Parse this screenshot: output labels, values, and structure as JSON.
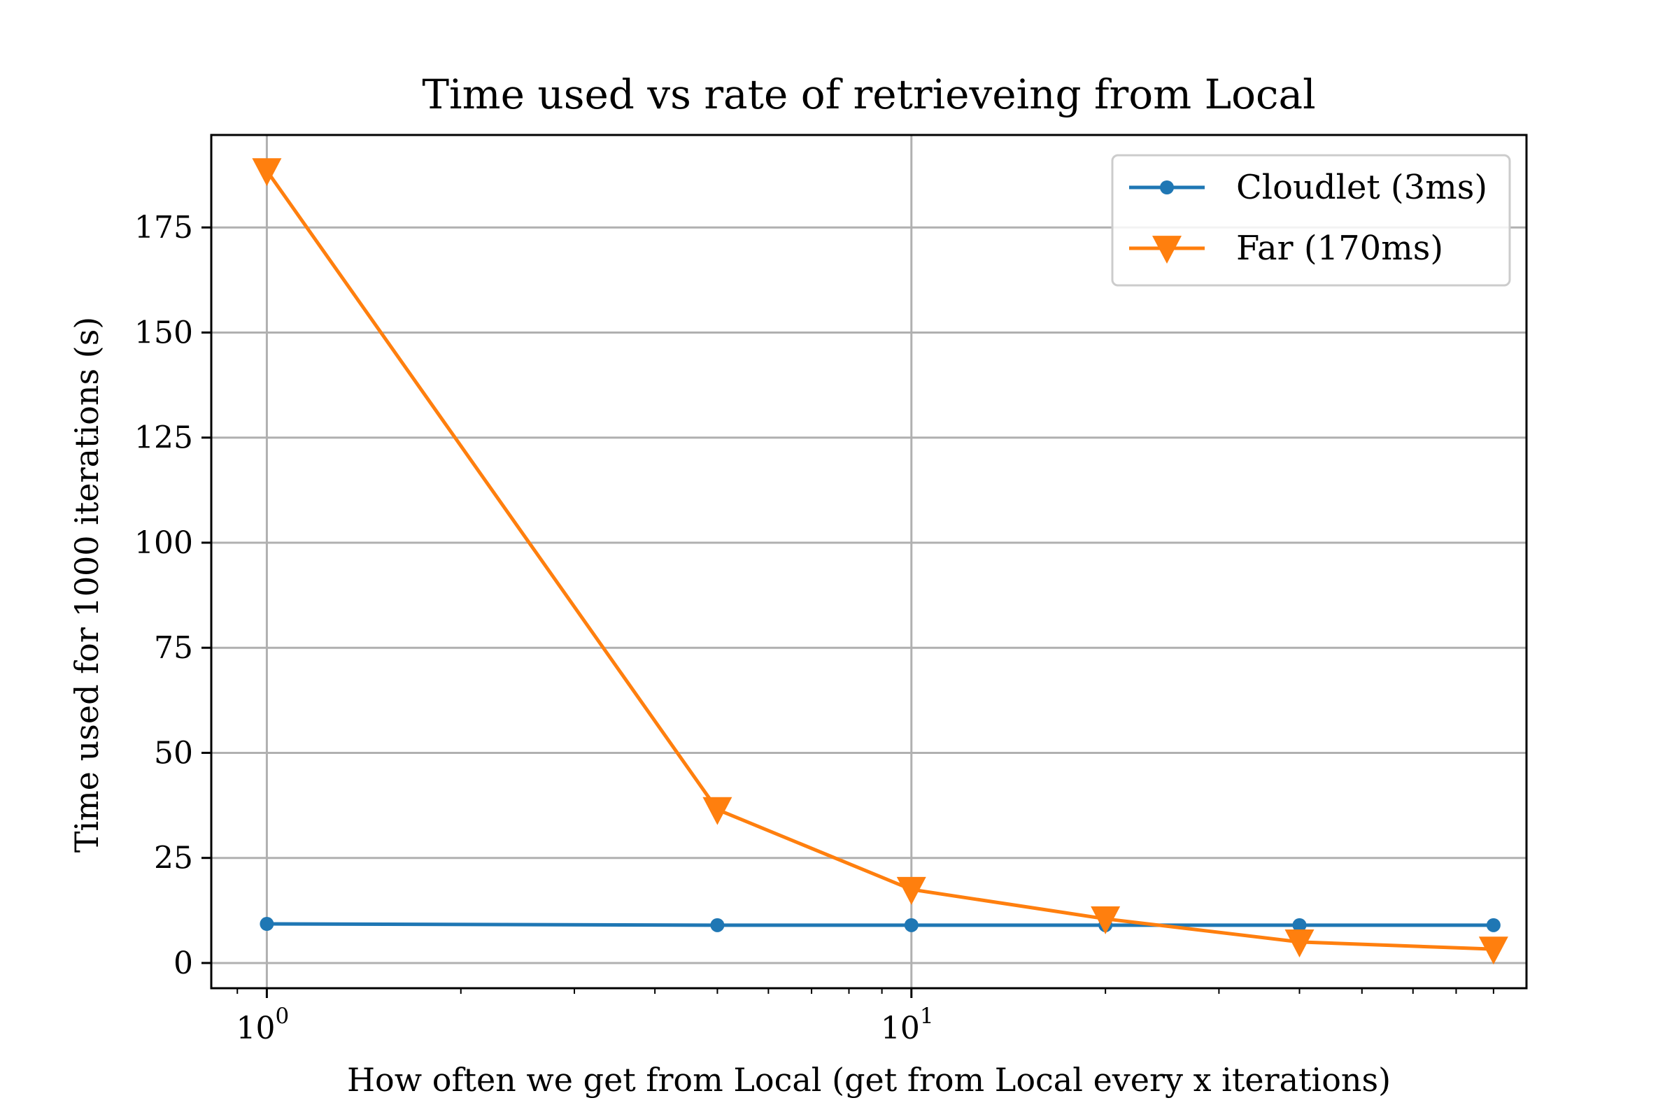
{
  "chart_data": {
    "type": "line",
    "title": "Time used vs rate of retrieveing from Local",
    "xlabel": "How often we get from Local (get from Local every x iterations)",
    "ylabel": "Time used for 1000 iterations (s)",
    "xscale": "log",
    "xlim": [
      0.82,
      90
    ],
    "ylim": [
      -6,
      197
    ],
    "grid": true,
    "legend_position": "top-right",
    "x": [
      1,
      5,
      10,
      20,
      40,
      80
    ],
    "series": [
      {
        "name": "Cloudlet (3ms)",
        "color": "#1f77b4",
        "marker": "circle",
        "values": [
          9.3,
          9.0,
          9.0,
          9.0,
          9.0,
          9.0
        ]
      },
      {
        "name": "Far (170ms)",
        "color": "#ff7f0e",
        "marker": "triangle-down",
        "values": [
          188.5,
          36.5,
          17.5,
          10.5,
          5.0,
          3.3
        ]
      }
    ],
    "x_ticks": [
      {
        "value": 1,
        "base": "10",
        "exp": "0"
      },
      {
        "value": 10,
        "base": "10",
        "exp": "1"
      }
    ],
    "y_ticks": [
      {
        "value": 0,
        "label": "0"
      },
      {
        "value": 25,
        "label": "25"
      },
      {
        "value": 50,
        "label": "50"
      },
      {
        "value": 75,
        "label": "75"
      },
      {
        "value": 100,
        "label": "100"
      },
      {
        "value": 125,
        "label": "125"
      },
      {
        "value": 150,
        "label": "150"
      },
      {
        "value": 175,
        "label": "175"
      }
    ]
  }
}
